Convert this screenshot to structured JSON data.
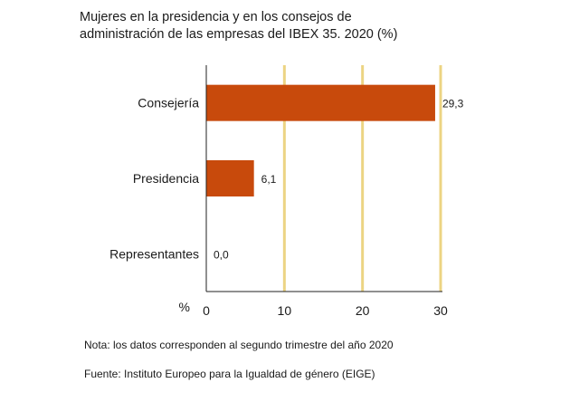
{
  "title_lines": [
    "Mujeres en la presidencia y en los consejos de",
    "administración de las empresas del IBEX 35. 2020 (%)"
  ],
  "note": "Nota: los datos corresponden al segundo trimestre del año 2020",
  "source": "Fuente: Instituto Europeo para la Igualdad de género (EIGE)",
  "colors": {
    "bar": "#c84a0c",
    "grid": "#ecd483",
    "axis": "#222222"
  },
  "chart_data": {
    "type": "bar",
    "orientation": "horizontal",
    "title": "Mujeres en la presidencia y en los consejos de administración de las empresas del IBEX 35. 2020 (%)",
    "categories": [
      "Consejería",
      "Presidencia",
      "Representantes"
    ],
    "values": [
      29.3,
      6.1,
      0.0
    ],
    "value_labels": [
      "29,3",
      "6,1",
      "0,0"
    ],
    "xlabel": "%",
    "ylabel": "",
    "xlim": [
      0,
      30
    ],
    "xticks": [
      0,
      10,
      20,
      30
    ],
    "xtick_labels": [
      "0",
      "10",
      "20",
      "30"
    ],
    "grid": "vertical",
    "legend": "none"
  }
}
